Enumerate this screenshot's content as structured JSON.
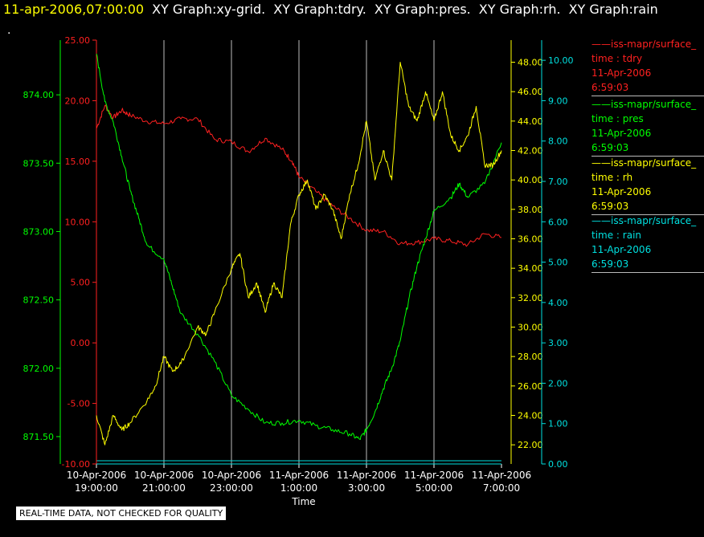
{
  "header": {
    "timestamp": "11-apr-2006,07:00:00",
    "graph_titles": [
      "XY Graph:xy-grid.",
      "XY Graph:tdry.",
      "XY Graph:pres.",
      "XY Graph:rh.",
      "XY Graph:rain"
    ],
    "dot": "."
  },
  "disclaimer": "REAL-TIME DATA, NOT CHECKED FOR QUALITY",
  "colors": {
    "tdry": "#ff2020",
    "pres": "#00ff00",
    "rh": "#ffff00",
    "rain": "#00e0e0",
    "grid": "#bbbbbb"
  },
  "legend": [
    {
      "name": "iss-mapr/surface_",
      "field": "time : tdry",
      "date": "11-Apr-2006",
      "time": "6:59:03",
      "color": "#ff2020"
    },
    {
      "name": "iss-mapr/surface_",
      "field": "time : pres",
      "date": "11-Apr-2006",
      "time": "6:59:03",
      "color": "#00ff00"
    },
    {
      "name": "iss-mapr/surface_",
      "field": "time : rh",
      "date": "11-Apr-2006",
      "time": "6:59:03",
      "color": "#ffff00"
    },
    {
      "name": "iss-mapr/surface_",
      "field": "time : rain",
      "date": "11-Apr-2006",
      "time": "6:59:03",
      "color": "#00e0e0"
    }
  ],
  "chart_data": {
    "type": "line",
    "xlabel": "Time",
    "x_ticks": [
      [
        "10-Apr-2006",
        "19:00:00"
      ],
      [
        "10-Apr-2006",
        "21:00:00"
      ],
      [
        "10-Apr-2006",
        "23:00:00"
      ],
      [
        "11-Apr-2006",
        "1:00:00"
      ],
      [
        "11-Apr-2006",
        "3:00:00"
      ],
      [
        "11-Apr-2006",
        "5:00:00"
      ],
      [
        "11-Apr-2006",
        "7:00:00"
      ]
    ],
    "x_unit": "hours since 10-Apr-2006 19:00",
    "xlim": [
      0,
      12
    ],
    "axes": {
      "pres": {
        "ylim": [
          871.3,
          874.4
        ],
        "ticks": [
          "871.50",
          "872.00",
          "872.50",
          "873.00",
          "873.50",
          "874.00"
        ],
        "color": "#00ff00"
      },
      "tdry": {
        "ylim": [
          -10,
          25
        ],
        "ticks": [
          "-10.00",
          "-5.00",
          "0.00",
          "5.00",
          "10.00",
          "15.00",
          "20.00",
          "25.00"
        ],
        "color": "#ff2020"
      },
      "rh": {
        "ylim": [
          20.7,
          49.5
        ],
        "ticks": [
          "22.00",
          "24.00",
          "26.00",
          "28.00",
          "30.00",
          "32.00",
          "34.00",
          "36.00",
          "38.00",
          "40.00",
          "42.00",
          "44.00",
          "46.00",
          "48.00"
        ],
        "color": "#ffff00"
      },
      "rain": {
        "ylim": [
          0,
          10.5
        ],
        "ticks": [
          "0.00",
          "1.00",
          "2.00",
          "3.00",
          "4.00",
          "5.00",
          "6.00",
          "7.00",
          "8.00",
          "9.00",
          "10.00"
        ],
        "color": "#00e0e0"
      }
    },
    "grid": true,
    "series": [
      {
        "name": "time : tdry",
        "axis": "tdry",
        "x": [
          0,
          0.25,
          0.5,
          0.75,
          1.0,
          1.5,
          2.0,
          2.5,
          3.0,
          3.5,
          4.0,
          4.5,
          5.0,
          5.5,
          5.8,
          6.0,
          6.5,
          7.0,
          7.5,
          8.0,
          8.5,
          9.0,
          9.5,
          10.0,
          10.5,
          11.0,
          11.5,
          12.0
        ],
        "values": [
          17.7,
          19.6,
          18.6,
          19.2,
          18.8,
          18.3,
          18.1,
          18.5,
          18.5,
          16.8,
          16.6,
          15.8,
          16.9,
          16.0,
          15.0,
          13.7,
          12.5,
          11.3,
          10.3,
          9.3,
          9.2,
          8.2,
          8.3,
          8.6,
          8.4,
          8.1,
          9.0,
          8.7
        ]
      },
      {
        "name": "time : pres",
        "axis": "pres",
        "x": [
          0,
          0.25,
          0.5,
          0.75,
          1.0,
          1.25,
          1.5,
          2.0,
          2.25,
          2.5,
          3.0,
          3.5,
          4.0,
          4.5,
          5.0,
          5.5,
          6.0,
          6.5,
          7.0,
          7.5,
          7.8,
          8.0,
          8.25,
          8.5,
          8.75,
          9.0,
          9.25,
          9.5,
          9.75,
          10.0,
          10.5,
          10.75,
          11.0,
          11.5,
          12.0
        ],
        "values": [
          874.3,
          873.95,
          873.8,
          873.55,
          873.3,
          873.1,
          872.9,
          872.8,
          872.6,
          872.4,
          872.25,
          872.05,
          871.8,
          871.7,
          871.6,
          871.6,
          871.62,
          871.58,
          871.55,
          871.52,
          871.48,
          871.55,
          871.68,
          871.85,
          872.0,
          872.2,
          872.5,
          872.75,
          872.95,
          873.15,
          873.25,
          873.35,
          873.25,
          873.35,
          873.65
        ]
      },
      {
        "name": "time : rh",
        "axis": "rh",
        "x": [
          0,
          0.25,
          0.5,
          0.75,
          1.0,
          1.5,
          1.75,
          2.0,
          2.25,
          2.5,
          3.0,
          3.25,
          3.5,
          4.0,
          4.25,
          4.5,
          4.75,
          5.0,
          5.25,
          5.5,
          5.75,
          6.0,
          6.25,
          6.5,
          6.75,
          7.0,
          7.25,
          7.5,
          7.75,
          8.0,
          8.25,
          8.5,
          8.75,
          9.0,
          9.25,
          9.5,
          9.75,
          10.0,
          10.25,
          10.5,
          10.75,
          11.0,
          11.25,
          11.5,
          11.75,
          12.0
        ],
        "values": [
          24.0,
          22.0,
          24.0,
          23.0,
          23.5,
          25.0,
          26.0,
          28.0,
          27.0,
          27.5,
          30.0,
          29.5,
          31.0,
          34.0,
          35.0,
          32.0,
          33.0,
          31.0,
          33.0,
          32.0,
          37.0,
          39.0,
          40.0,
          38.0,
          39.0,
          38.0,
          36.0,
          39.0,
          41.0,
          44.0,
          40.0,
          42.0,
          40.0,
          48.0,
          45.0,
          44.0,
          46.0,
          44.0,
          46.0,
          43.0,
          42.0,
          43.0,
          45.0,
          41.0,
          41.0,
          42.0
        ]
      },
      {
        "name": "time : rain",
        "axis": "rain",
        "x": [
          0,
          12
        ],
        "values": [
          0.0,
          0.0
        ]
      }
    ]
  }
}
